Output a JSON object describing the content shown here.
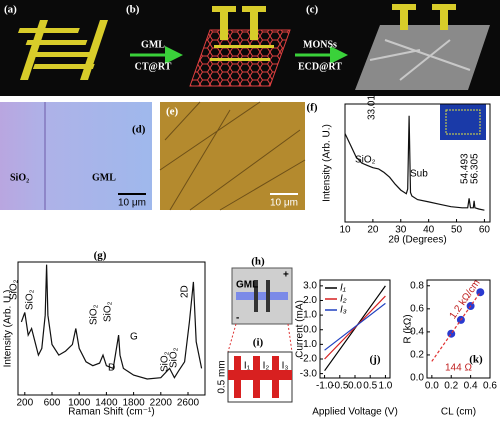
{
  "panels": {
    "a": "(a)",
    "b": "(b)",
    "c": "(c)",
    "d": "(d)",
    "e": "(e)",
    "h": "(h)",
    "i": "(i)"
  },
  "arrows": [
    {
      "top": "GML",
      "bottom": "CT@RT"
    },
    {
      "top": "MONSs",
      "bottom": "ECD@RT"
    }
  ],
  "panel_d": {
    "left": "SiO₂",
    "right": "GML",
    "scale": "10 μm"
  },
  "panel_e": {
    "scale": "10 μm"
  },
  "panel_h": {
    "label": "GML",
    "plus": "+",
    "minus": "-"
  },
  "panel_i": {
    "scale": "0.5 mm",
    "bars": [
      "I₁",
      "I₂",
      "I₃"
    ]
  },
  "chart_data": [
    {
      "type": "line",
      "label": "(f)",
      "x_label": "2θ (Degrees)",
      "y_label": "Intensity (Arb. U.)",
      "x": [
        10,
        12,
        14,
        16,
        18,
        20,
        22,
        24,
        26,
        28,
        30,
        32,
        32.5,
        33,
        33.5,
        34,
        36,
        40,
        44,
        48,
        52,
        54,
        54.5,
        55,
        56,
        56.3,
        56.6,
        58,
        60
      ],
      "series": [
        {
          "color": "#111111",
          "values": [
            75,
            65,
            55,
            50,
            48,
            46,
            45,
            42,
            38,
            32,
            27,
            24,
            28,
            90,
            25,
            22,
            19,
            17,
            15,
            13,
            12,
            12,
            20,
            12,
            12,
            18,
            12,
            11,
            10
          ]
        }
      ],
      "xlim": [
        10,
        62
      ],
      "ylim": [
        0,
        100
      ],
      "xticks": [
        10,
        20,
        30,
        40,
        50,
        60
      ],
      "annotations": [
        "33.01",
        "SiO₂",
        "Sub",
        "54.493",
        "56.305"
      ]
    },
    {
      "type": "line",
      "label": "(g)",
      "x_label": "Raman Shift (cm⁻¹)",
      "y_label": "Intensity (Arb. U.)",
      "x": [
        150,
        200,
        250,
        300,
        350,
        400,
        450,
        500,
        520,
        540,
        600,
        700,
        800,
        900,
        950,
        1000,
        1100,
        1200,
        1300,
        1350,
        1400,
        1500,
        1580,
        1600,
        1650,
        1800,
        2000,
        2200,
        2330,
        2400,
        2460,
        2550,
        2620,
        2680,
        2720,
        2800
      ],
      "series": [
        {
          "color": "#111111",
          "values": [
            55,
            62,
            45,
            50,
            40,
            30,
            35,
            60,
            98,
            60,
            38,
            30,
            33,
            38,
            50,
            35,
            25,
            22,
            24,
            30,
            22,
            20,
            45,
            30,
            20,
            15,
            12,
            13,
            20,
            13,
            18,
            25,
            55,
            85,
            40,
            20
          ]
        }
      ],
      "xlim": [
        100,
        2850
      ],
      "ylim": [
        0,
        100
      ],
      "xticks": [
        200,
        600,
        1000,
        1400,
        1800,
        2200,
        2600
      ],
      "annotations": [
        "SiO₂",
        "SiO₂",
        "SiO₂",
        "SiO₂",
        "D",
        "G",
        "SiO₂",
        "SiO₂",
        "2D"
      ]
    },
    {
      "type": "line",
      "label": "(j)",
      "x_label": "Applied Voltage (V)",
      "y_label": "Current (mA)",
      "x": [
        -1.0,
        1.0
      ],
      "series": [
        {
          "name": "I₁",
          "color": "#000000",
          "values": [
            -2.8,
            3.0
          ]
        },
        {
          "name": "I₂",
          "color": "#d62020",
          "values": [
            -2.0,
            2.3
          ]
        },
        {
          "name": "I₃",
          "color": "#2040c0",
          "values": [
            -1.4,
            1.8
          ]
        }
      ],
      "xlim": [
        -1.15,
        1.15
      ],
      "ylim": [
        -3.3,
        3.4
      ],
      "xticks": [
        {
          "value": -1,
          "label": "-1.0"
        },
        {
          "value": -0.5,
          "label": "-0.5"
        },
        {
          "value": 0,
          "label": "0.0"
        },
        {
          "value": 0.5,
          "label": "0.5"
        },
        {
          "value": 1,
          "label": "1.0"
        }
      ],
      "yticks": [
        {
          "value": 3,
          "label": "3.0"
        },
        {
          "value": 2,
          "label": "2.0"
        },
        {
          "value": 1,
          "label": "1.0"
        },
        {
          "value": 0,
          "label": "0.0"
        },
        {
          "value": -1,
          "label": "-1.0"
        },
        {
          "value": -2,
          "label": "-2.0"
        },
        {
          "value": -3,
          "label": "-3.0"
        }
      ],
      "legend": "top-left"
    },
    {
      "type": "scatter",
      "label": "(k)",
      "x_label": "CL (cm)",
      "y_label": "R (kΩ)",
      "x": [
        0.2,
        0.3,
        0.4,
        0.5
      ],
      "series": [
        {
          "color": "#2a3ad0",
          "style": "markers",
          "values": [
            0.384,
            0.504,
            0.624,
            0.744
          ]
        },
        {
          "color": "#e03030",
          "style": "dashed",
          "x": [
            0,
            0.5
          ],
          "values": [
            0.144,
            0.744
          ]
        }
      ],
      "xlim": [
        -0.05,
        0.6
      ],
      "ylim": [
        0,
        0.85
      ],
      "xticks": [
        {
          "value": 0,
          "label": "0.0"
        },
        {
          "value": 0.2,
          "label": "0.2"
        },
        {
          "value": 0.4,
          "label": "0.4"
        },
        {
          "value": 0.6,
          "label": "0.6"
        }
      ],
      "yticks": [
        {
          "value": 0,
          "label": "0.0"
        },
        {
          "value": 0.2,
          "label": "0.2"
        },
        {
          "value": 0.4,
          "label": "0.4"
        },
        {
          "value": 0.6,
          "label": "0.6"
        },
        {
          "value": 0.8,
          "label": "0.8"
        }
      ],
      "annotations": [
        "1.2 kΩ/cm",
        "144 Ω"
      ]
    }
  ]
}
